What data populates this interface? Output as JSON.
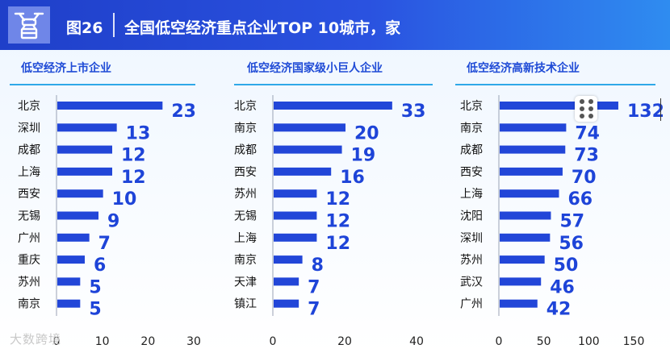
{
  "header": {
    "figure_number": "图26",
    "title": "全国低空经济重点企业TOP 10城市，家",
    "icon": "drone-icon"
  },
  "watermark": "大数跨境",
  "colors": {
    "bar": "#2246d8",
    "value_label": "#1e44d8",
    "title_bg": "#2a52e0"
  },
  "chart_data": [
    {
      "type": "bar",
      "orientation": "horizontal",
      "title": "低空经济上市企业",
      "categories": [
        "北京",
        "深圳",
        "成都",
        "上海",
        "西安",
        "无锡",
        "广州",
        "重庆",
        "苏州",
        "南京"
      ],
      "values": [
        23,
        13,
        12,
        12,
        10,
        9,
        7,
        6,
        5,
        5
      ],
      "xlim": [
        0,
        30
      ],
      "xticks": [
        0,
        10,
        20,
        30
      ],
      "xtick_labels": [
        "0",
        "10",
        "20",
        "30"
      ]
    },
    {
      "type": "bar",
      "orientation": "horizontal",
      "title": "低空经济国家级小巨人企业",
      "categories": [
        "北京",
        "南京",
        "成都",
        "西安",
        "苏州",
        "无锡",
        "上海",
        "南京",
        "天津",
        "镇江"
      ],
      "values": [
        33,
        20,
        19,
        16,
        12,
        12,
        12,
        8,
        7,
        7
      ],
      "xlim": [
        0,
        40
      ],
      "xticks": [
        0,
        20,
        40
      ],
      "xtick_labels": [
        "0",
        "20",
        "40"
      ]
    },
    {
      "type": "bar",
      "orientation": "horizontal",
      "title": "低空经济高新技术企业",
      "categories": [
        "北京",
        "南京",
        "成都",
        "西安",
        "上海",
        "沈阳",
        "深圳",
        "苏州",
        "武汉",
        "广州"
      ],
      "values": [
        132,
        74,
        73,
        70,
        66,
        57,
        56,
        50,
        46,
        42
      ],
      "xlim": [
        0,
        150
      ],
      "xticks": [
        0,
        50,
        100,
        150
      ],
      "xtick_labels": [
        "0",
        "50",
        "100",
        "150"
      ]
    }
  ]
}
